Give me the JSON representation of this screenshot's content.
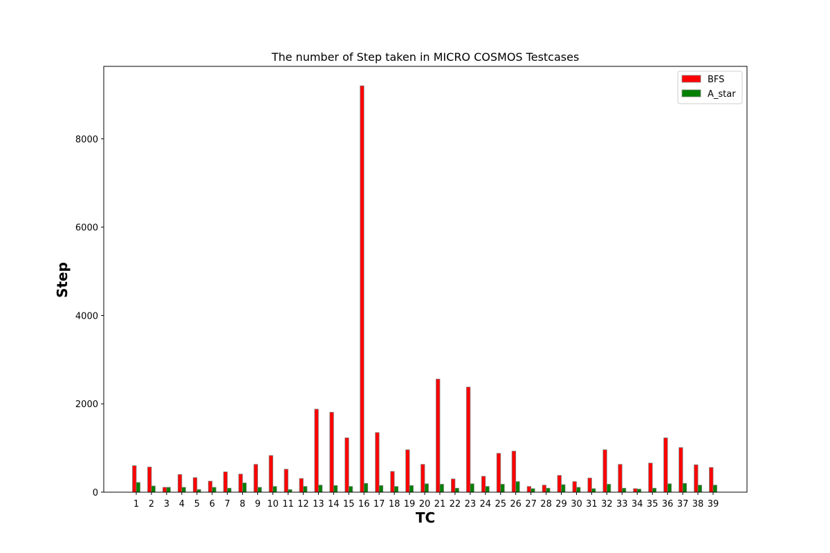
{
  "chart_data": {
    "type": "bar",
    "title": "The number of Step taken in MICRO COSMOS Testcases",
    "xlabel": "TC",
    "ylabel": "Step",
    "ylim": [
      0,
      9640
    ],
    "yticks": [
      0,
      2000,
      4000,
      6000,
      8000
    ],
    "legend_position": "top-right",
    "categories": [
      "1",
      "2",
      "3",
      "4",
      "5",
      "6",
      "7",
      "8",
      "9",
      "10",
      "11",
      "12",
      "13",
      "14",
      "15",
      "16",
      "17",
      "18",
      "19",
      "20",
      "21",
      "22",
      "23",
      "24",
      "25",
      "26",
      "27",
      "28",
      "29",
      "30",
      "31",
      "32",
      "33",
      "34",
      "35",
      "36",
      "37",
      "38",
      "39"
    ],
    "series": [
      {
        "name": "BFS",
        "color": "#ff0000",
        "values": [
          600,
          570,
          110,
          400,
          330,
          250,
          460,
          410,
          630,
          830,
          520,
          310,
          1880,
          1810,
          1230,
          9200,
          1350,
          470,
          960,
          630,
          2560,
          300,
          2380,
          360,
          880,
          930,
          130,
          160,
          380,
          240,
          320,
          960,
          630,
          80,
          660,
          1230,
          1010,
          620,
          560
        ]
      },
      {
        "name": "A_star",
        "color": "#008000",
        "values": [
          220,
          140,
          110,
          110,
          60,
          110,
          90,
          210,
          110,
          130,
          60,
          130,
          160,
          150,
          130,
          200,
          150,
          130,
          150,
          190,
          180,
          90,
          190,
          130,
          180,
          240,
          80,
          90,
          170,
          110,
          80,
          180,
          90,
          70,
          90,
          190,
          200,
          160,
          160
        ]
      }
    ]
  }
}
